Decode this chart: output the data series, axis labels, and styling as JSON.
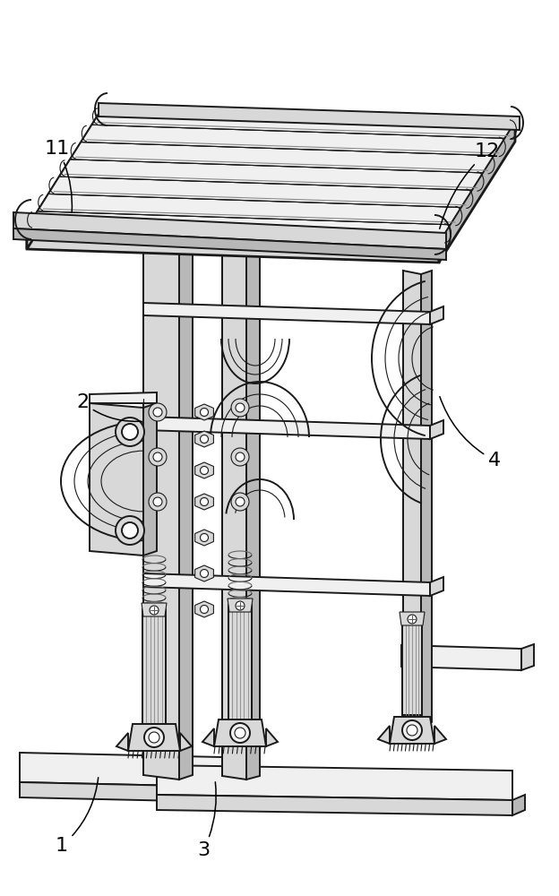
{
  "bg_color": "#ffffff",
  "lc": "#1a1a1a",
  "fill_white": "#ffffff",
  "fill_light": "#f0f0f0",
  "fill_mid": "#d8d8d8",
  "fill_dark": "#b8b8b8",
  "fill_darker": "#989898",
  "label_fs": 16,
  "fig_w": 6.24,
  "fig_h": 10.0,
  "dpi": 100
}
